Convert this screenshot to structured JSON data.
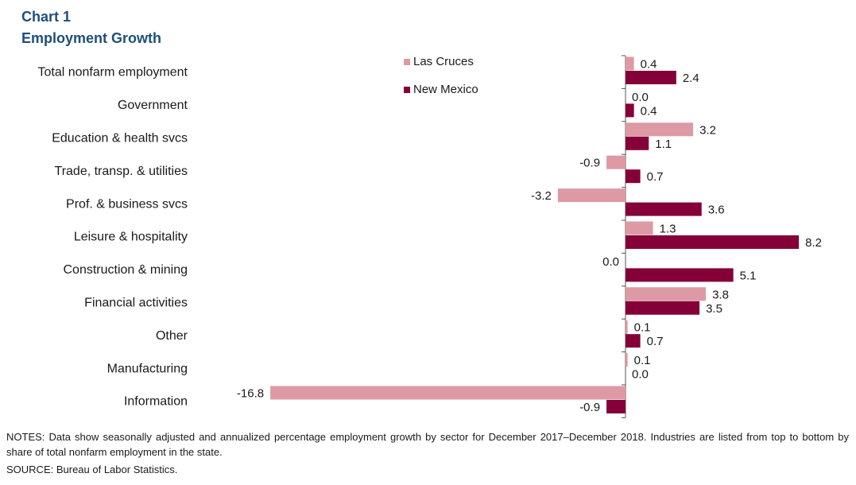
{
  "header": {
    "chart_number": "Chart 1",
    "title": "Employment  Growth"
  },
  "colors": {
    "las_cruces": "#dd9aa4",
    "new_mexico": "#850038",
    "axis": "#555555"
  },
  "chart_data": {
    "type": "bar",
    "orientation": "horizontal",
    "categories": [
      "Total nonfarm employment",
      "Government",
      "Education & health svcs",
      "Trade, transp. & utilities",
      "Prof. & business svcs",
      "Leisure & hospitality",
      "Construction & mining",
      "Financial activities",
      "Other",
      "Manufacturing",
      "Information"
    ],
    "series": [
      {
        "name": "Las Cruces",
        "values": [
          0.4,
          0.0,
          3.2,
          -0.9,
          -3.2,
          1.3,
          0.0,
          3.8,
          0.1,
          0.1,
          -16.8
        ],
        "labels": [
          "0.4",
          "0.0",
          "3.2",
          "-0.9",
          "-3.2",
          "1.3",
          "0.0",
          "3.8",
          "0.1",
          "0.1",
          "-16.8"
        ]
      },
      {
        "name": "New Mexico",
        "values": [
          2.4,
          0.4,
          1.1,
          0.7,
          3.6,
          8.2,
          5.1,
          3.5,
          0.7,
          0.0,
          -0.9
        ],
        "labels": [
          "2.4",
          "0.4",
          "1.1",
          "0.7",
          "3.6",
          "8.2",
          "5.1",
          "3.5",
          "0.7",
          "0.0",
          "-0.9"
        ]
      }
    ],
    "title": "Employment  Growth",
    "xlabel": "",
    "ylabel": "",
    "xlim": [
      -17.5,
      9.5
    ],
    "grid": false,
    "legend_position": "top-center"
  },
  "footer": {
    "notes": "NOTES:  Data show seasonally adjusted and annualized percentage employment  growth by sector for December 2017–December 2018. Industries are listed from top to bottom by share of total nonfarm employment  in the state.",
    "source": "SOURCE:  Bureau of Labor Statistics."
  }
}
